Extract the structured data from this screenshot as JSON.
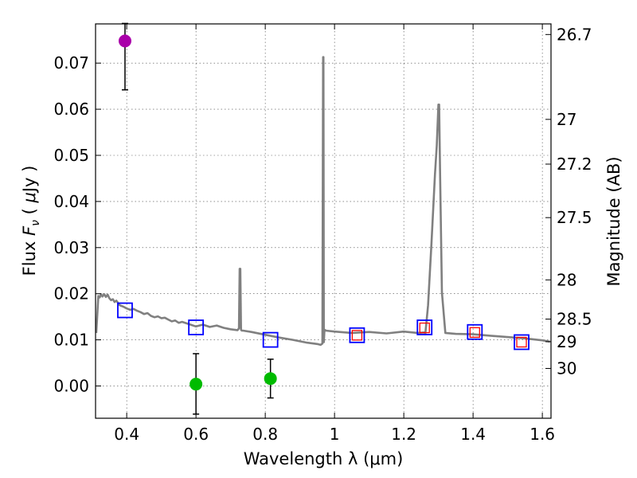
{
  "chart_data": {
    "type": "scatter",
    "title": "",
    "xlabel": "Wavelength  λ (μm)",
    "ylabel": "Flux  F_ν  ( μJy )",
    "ylabel_parts": {
      "prefix": "Flux  ",
      "var": "F",
      "sub": "ν",
      "open": "  ( ",
      "unit_mu": "μ",
      "unit": "Jy )"
    },
    "ylabel_right": "Magnitude (AB)",
    "xlim": [
      0.31,
      1.625
    ],
    "ylim": [
      -0.007,
      0.0785
    ],
    "grid": true,
    "x_ticks": [
      0.4,
      0.6,
      0.8,
      1.0,
      1.2,
      1.4,
      1.6
    ],
    "x_tick_labels": [
      "0.4",
      "0.6",
      "0.8",
      "1",
      "1.2",
      "1.4",
      "1.6"
    ],
    "y_ticks": [
      0.0,
      0.01,
      0.02,
      0.03,
      0.04,
      0.05,
      0.06,
      0.07
    ],
    "y_tick_labels": [
      "0.00",
      "0.01",
      "0.02",
      "0.03",
      "0.04",
      "0.05",
      "0.06",
      "0.07"
    ],
    "mag_ticks": [
      {
        "label": "26.7",
        "flux": 0.0762
      },
      {
        "label": "27",
        "flux": 0.0578
      },
      {
        "label": "27.2",
        "flux": 0.0481
      },
      {
        "label": "27.5",
        "flux": 0.0365
      },
      {
        "label": "28",
        "flux": 0.023
      },
      {
        "label": "28.5",
        "flux": 0.0145
      },
      {
        "label": "29",
        "flux": 0.0096
      },
      {
        "label": "30",
        "flux": 0.0038
      }
    ],
    "series": [
      {
        "name": "model_spectrum",
        "type": "line",
        "color": "#808080",
        "x": [
          0.312,
          0.318,
          0.322,
          0.326,
          0.33,
          0.335,
          0.34,
          0.345,
          0.35,
          0.355,
          0.36,
          0.365,
          0.37,
          0.375,
          0.38,
          0.39,
          0.4,
          0.41,
          0.42,
          0.43,
          0.44,
          0.45,
          0.46,
          0.47,
          0.48,
          0.49,
          0.5,
          0.51,
          0.52,
          0.53,
          0.54,
          0.55,
          0.56,
          0.58,
          0.6,
          0.62,
          0.64,
          0.66,
          0.68,
          0.7,
          0.72,
          0.724,
          0.726,
          0.728,
          0.73,
          0.732,
          0.736,
          0.76,
          0.8,
          0.84,
          0.88,
          0.92,
          0.95,
          0.96,
          0.965,
          0.967,
          0.968,
          0.969,
          0.971,
          0.975,
          1.0,
          1.05,
          1.1,
          1.15,
          1.2,
          1.24,
          1.26,
          1.262,
          1.27,
          1.28,
          1.29,
          1.295,
          1.3,
          1.302,
          1.305,
          1.31,
          1.32,
          1.35,
          1.4,
          1.45,
          1.5,
          1.55,
          1.6,
          1.622
        ],
        "y": [
          0.0115,
          0.0195,
          0.0192,
          0.0199,
          0.0194,
          0.0199,
          0.0193,
          0.0198,
          0.019,
          0.0186,
          0.0188,
          0.0182,
          0.0185,
          0.018,
          0.0175,
          0.0172,
          0.0168,
          0.0165,
          0.0167,
          0.0163,
          0.016,
          0.0156,
          0.0158,
          0.0152,
          0.0149,
          0.0151,
          0.0147,
          0.0148,
          0.0144,
          0.014,
          0.0142,
          0.0137,
          0.0139,
          0.0134,
          0.0129,
          0.0133,
          0.0128,
          0.0131,
          0.0126,
          0.0123,
          0.0121,
          0.0125,
          0.0254,
          0.0254,
          0.0122,
          0.012,
          0.012,
          0.0117,
          0.0111,
          0.0105,
          0.01,
          0.0094,
          0.0091,
          0.0089,
          0.0092,
          0.0713,
          0.0713,
          0.0095,
          0.0122,
          0.012,
          0.0118,
          0.0115,
          0.0117,
          0.0114,
          0.0118,
          0.0115,
          0.0116,
          0.0112,
          0.0175,
          0.031,
          0.046,
          0.052,
          0.061,
          0.061,
          0.045,
          0.0203,
          0.0115,
          0.0113,
          0.0112,
          0.0109,
          0.0106,
          0.0103,
          0.0099,
          0.0096
        ]
      },
      {
        "name": "model_photometry",
        "type": "square",
        "color": "#0000ff",
        "x": [
          0.395,
          0.6,
          0.815,
          1.065,
          1.26,
          1.405,
          1.54
        ],
        "y": [
          0.0164,
          0.0127,
          0.01,
          0.011,
          0.0127,
          0.0117,
          0.0095
        ]
      },
      {
        "name": "observed_photometry",
        "type": "square",
        "color": "#ff0000",
        "x": [
          1.065,
          1.26,
          1.405,
          1.54
        ],
        "y": [
          0.011,
          0.0126,
          0.0116,
          0.0095
        ]
      },
      {
        "name": "detections",
        "type": "point_errorbar",
        "color": "#00bb00",
        "x": [
          0.6,
          0.815
        ],
        "y": [
          0.0004,
          0.0016
        ],
        "yerr_low": [
          0.0065,
          0.0042
        ],
        "yerr_high": [
          0.0066,
          0.0042
        ]
      },
      {
        "name": "uv_detection",
        "type": "point_errorbar",
        "color": "#aa00aa",
        "x": [
          0.395
        ],
        "y": [
          0.0748
        ],
        "yerr_low": [
          0.0106
        ],
        "yerr_high": [
          0.0038
        ]
      }
    ]
  }
}
